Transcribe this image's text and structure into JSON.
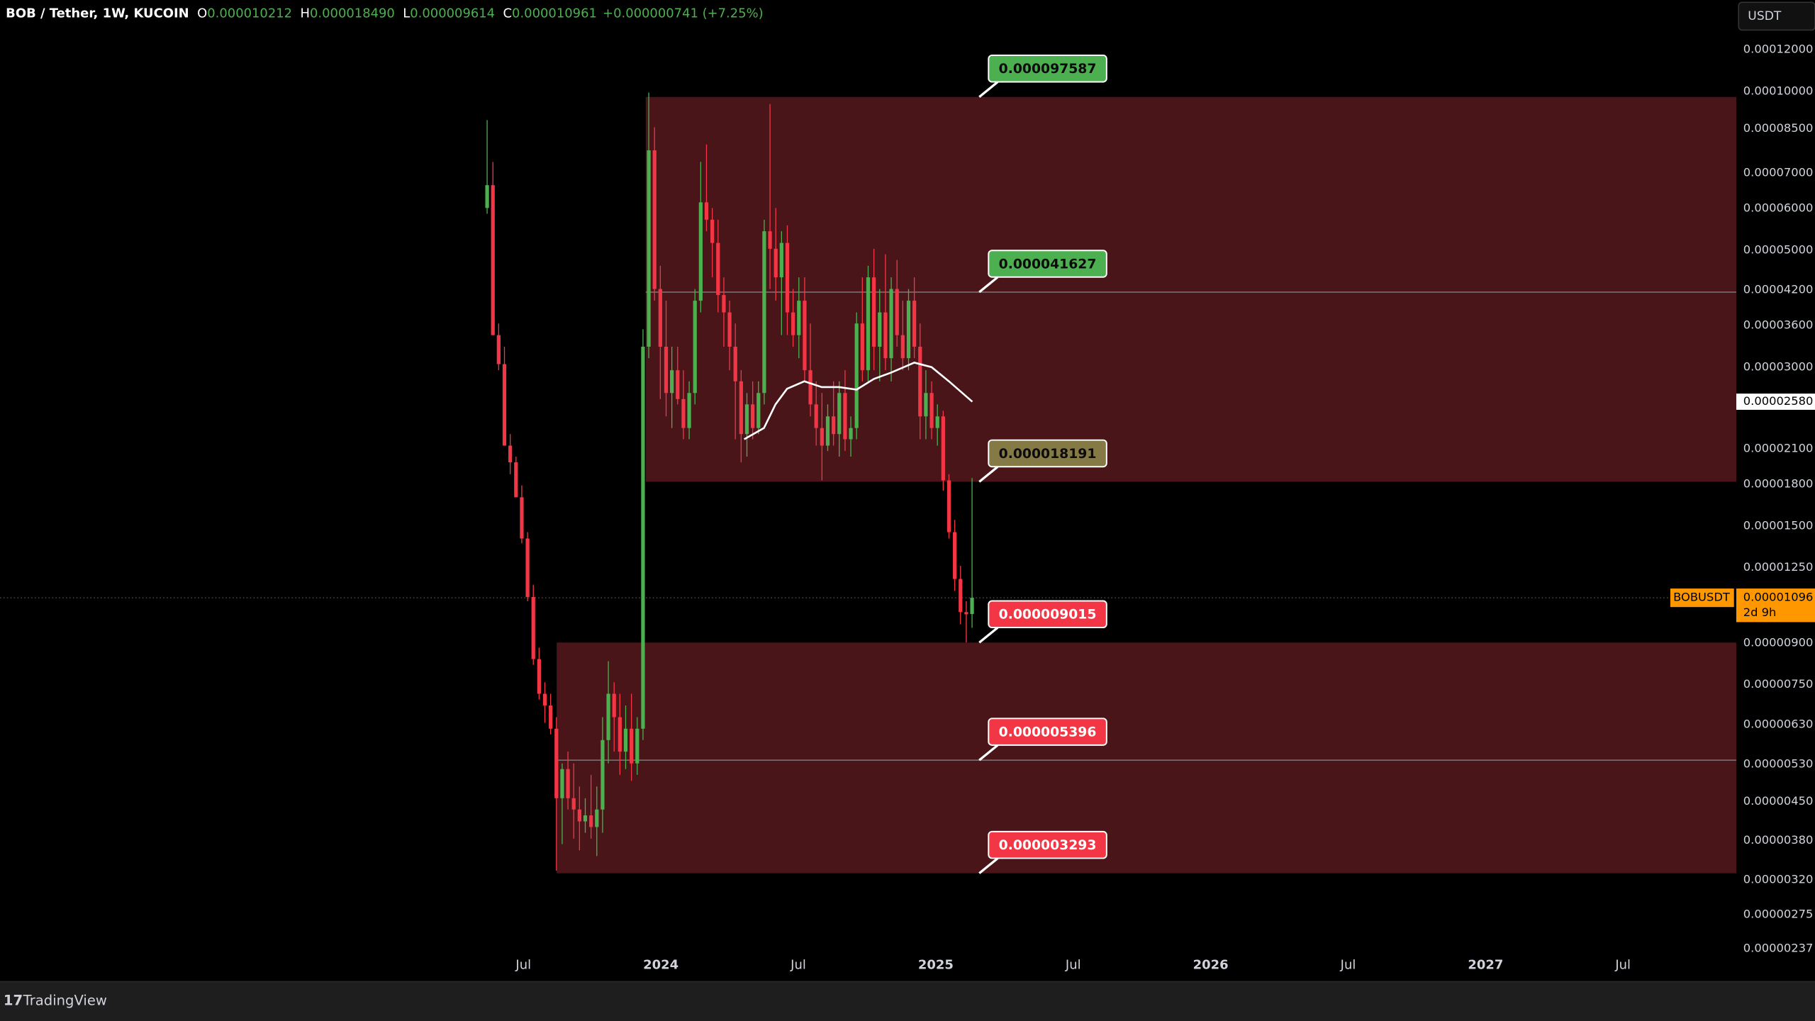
{
  "header": {
    "symbol": "BOB / Tether, 1W, KUCOIN",
    "fields": [
      {
        "key": "O",
        "value": "0.000010212"
      },
      {
        "key": "H",
        "value": "0.000018490"
      },
      {
        "key": "L",
        "value": "0.000009614"
      },
      {
        "key": "C",
        "value": "0.000010961"
      }
    ],
    "change": "+0.000000741 (+7.25%)"
  },
  "currency": "USDT",
  "brand": "TradingView",
  "chart_data": {
    "type": "candlestick",
    "yscale": "log",
    "up_color": "#4caf50",
    "down_color": "#f23645",
    "xlim": [
      2021.596,
      2027.912
    ],
    "ylim": [
      2.34e-06,
      0.000149
    ],
    "xticks": [
      {
        "value": 2023.5,
        "label": "Jul"
      },
      2024,
      {
        "value": 2024.5,
        "label": "Jul"
      },
      2025,
      {
        "value": 2025.5,
        "label": "Jul"
      },
      2026,
      {
        "value": 2026.5,
        "label": "Jul"
      },
      2027,
      {
        "value": 2027.5,
        "label": "Jul"
      }
    ],
    "yticks": [
      {
        "value": 0.00012,
        "label": "0.00012000"
      },
      {
        "value": 0.0001,
        "label": "0.00010000"
      },
      {
        "value": 8.5e-05,
        "label": "0.00008500"
      },
      {
        "value": 7e-05,
        "label": "0.00007000"
      },
      {
        "value": 6e-05,
        "label": "0.00006000"
      },
      {
        "value": 5e-05,
        "label": "0.00005000"
      },
      {
        "value": 4.2e-05,
        "label": "0.00004200"
      },
      {
        "value": 3.6e-05,
        "label": "0.00003600"
      },
      {
        "value": 3e-05,
        "label": "0.00003000"
      },
      {
        "value": 2.1e-05,
        "label": "0.00002100"
      },
      {
        "value": 1.8e-05,
        "label": "0.00001800"
      },
      {
        "value": 1.5e-05,
        "label": "0.00001500"
      },
      {
        "value": 1.25e-05,
        "label": "0.00001250"
      },
      {
        "value": 9e-06,
        "label": "0.00000900"
      },
      {
        "value": 7.5e-06,
        "label": "0.00000750"
      },
      {
        "value": 6.3e-06,
        "label": "0.00000630"
      },
      {
        "value": 5.3e-06,
        "label": "0.00000530"
      },
      {
        "value": 4.5e-06,
        "label": "0.00000450"
      },
      {
        "value": 3.8e-06,
        "label": "0.00000380"
      },
      {
        "value": 3.2e-06,
        "label": "0.00000320"
      },
      {
        "value": 2.75e-06,
        "label": "0.00000275"
      },
      {
        "value": 2.37e-06,
        "label": "0.00000237"
      }
    ],
    "x": [
      2023.368,
      2023.389,
      2023.41,
      2023.431,
      2023.452,
      2023.473,
      2023.494,
      2023.515,
      2023.536,
      2023.557,
      2023.578,
      2023.599,
      2023.62,
      2023.641,
      2023.662,
      2023.683,
      2023.704,
      2023.725,
      2023.746,
      2023.767,
      2023.788,
      2023.809,
      2023.83,
      2023.851,
      2023.872,
      2023.893,
      2023.914,
      2023.935,
      2023.956,
      2023.977,
      2023.998,
      2024.019,
      2024.04,
      2024.061,
      2024.082,
      2024.103,
      2024.124,
      2024.145,
      2024.166,
      2024.187,
      2024.208,
      2024.229,
      2024.25,
      2024.271,
      2024.292,
      2024.313,
      2024.334,
      2024.355,
      2024.376,
      2024.397,
      2024.418,
      2024.439,
      2024.46,
      2024.481,
      2024.502,
      2024.523,
      2024.544,
      2024.565,
      2024.586,
      2024.607,
      2024.628,
      2024.649,
      2024.67,
      2024.691,
      2024.712,
      2024.733,
      2024.754,
      2024.775,
      2024.796,
      2024.817,
      2024.838,
      2024.859,
      2024.88,
      2024.901,
      2024.922,
      2024.943,
      2024.964,
      2024.985,
      2025.006,
      2025.027,
      2025.048,
      2025.069,
      2025.09,
      2025.111,
      2025.132
    ],
    "open": [
      6.01e-05,
      6.64e-05,
      3.45e-05,
      3.04e-05,
      2.13e-05,
      1.98e-05,
      1.7e-05,
      1.42e-05,
      1.1e-05,
      8.39e-06,
      7.21e-06,
      6.85e-06,
      6.19e-06,
      4.57e-06,
      5.19e-06,
      4.57e-06,
      4.35e-06,
      4.13e-06,
      4.24e-06,
      4.03e-06,
      4.35e-06,
      5.89e-06,
      7.21e-06,
      6.51e-06,
      5.6e-06,
      6.19e-06,
      5.32e-06,
      6.19e-06,
      3.28e-05,
      7.73e-05,
      4.22e-05,
      3.28e-05,
      2.68e-05,
      2.96e-05,
      2.61e-05,
      2.3e-05,
      2.68e-05,
      4.01e-05,
      6.16e-05,
      5.71e-05,
      5.16e-05,
      4.11e-05,
      3.81e-05,
      3.28e-05,
      2.82e-05,
      2.24e-05,
      2.55e-05,
      2.3e-05,
      2.68e-05,
      5.43e-05,
      5.03e-05,
      4.44e-05,
      5.16e-05,
      3.81e-05,
      3.45e-05,
      4.01e-05,
      2.96e-05,
      2.55e-05,
      2.3e-05,
      2.13e-05,
      2.42e-05,
      2.24e-05,
      2.68e-05,
      2.19e-05,
      2.3e-05,
      3.63e-05,
      2.96e-05,
      4.44e-05,
      3.28e-05,
      3.81e-05,
      3.12e-05,
      4.22e-05,
      3.45e-05,
      3.12e-05,
      4.01e-05,
      3.28e-05,
      2.42e-05,
      2.68e-05,
      2.3e-05,
      2.42e-05,
      1.83e-05,
      1.46e-05,
      1.19e-05,
      1.03e-05,
      1.0212e-05
    ],
    "high": [
      8.82e-05,
      7.35e-05,
      3.63e-05,
      3.28e-05,
      2.24e-05,
      2.03e-05,
      1.79e-05,
      1.46e-05,
      1.16e-05,
      8.82e-06,
      7.58e-06,
      7.21e-06,
      6.51e-06,
      5.32e-06,
      5.6e-06,
      5.32e-06,
      4.81e-06,
      4.57e-06,
      5.06e-06,
      4.81e-06,
      6.51e-06,
      8.31e-06,
      7.58e-06,
      7.21e-06,
      6.85e-06,
      7.21e-06,
      6.51e-06,
      3.54e-05,
      9.95e-05,
      8.55e-05,
      4.67e-05,
      4.01e-05,
      3.28e-05,
      3.28e-05,
      2.96e-05,
      2.82e-05,
      4.22e-05,
      7.35e-05,
      7.93e-05,
      6.01e-05,
      5.71e-05,
      4.44e-05,
      4.01e-05,
      3.63e-05,
      2.96e-05,
      2.68e-05,
      2.82e-05,
      2.82e-05,
      5.71e-05,
      9.46e-05,
      6.01e-05,
      5.43e-05,
      5.57e-05,
      4.22e-05,
      4.44e-05,
      4.44e-05,
      3.63e-05,
      2.82e-05,
      2.68e-05,
      2.55e-05,
      2.82e-05,
      2.82e-05,
      2.96e-05,
      2.42e-05,
      3.81e-05,
      4.44e-05,
      4.67e-05,
      5.03e-05,
      4.22e-05,
      4.91e-05,
      4.44e-05,
      4.79e-05,
      4.01e-05,
      4.22e-05,
      4.44e-05,
      3.63e-05,
      2.96e-05,
      2.82e-05,
      2.55e-05,
      2.48e-05,
      1.88e-05,
      1.54e-05,
      1.26e-05,
      1.08e-05,
      1.849e-05
    ],
    "low": [
      5.86e-05,
      3.45e-05,
      2.96e-05,
      2.13e-05,
      1.88e-05,
      1.7e-05,
      1.39e-05,
      1.08e-05,
      8.18e-06,
      7.03e-06,
      6.35e-06,
      6.04e-06,
      3.33e-06,
      3.74e-06,
      4.35e-06,
      3.83e-06,
      3.64e-06,
      3.93e-06,
      3.83e-06,
      3.55e-06,
      3.93e-06,
      5.32e-06,
      5.6e-06,
      5.06e-06,
      5.19e-06,
      4.93e-06,
      5.06e-06,
      5.89e-06,
      3.12e-05,
      4.01e-05,
      2.61e-05,
      2.42e-05,
      2.3e-05,
      2.55e-05,
      2.19e-05,
      2.19e-05,
      2.55e-05,
      3.81e-05,
      5.43e-05,
      4.44e-05,
      3.81e-05,
      3.28e-05,
      2.96e-05,
      2.19e-05,
      1.98e-05,
      2.03e-05,
      2.19e-05,
      2.24e-05,
      2.55e-05,
      4.22e-05,
      4.01e-05,
      3.45e-05,
      3.45e-05,
      3.28e-05,
      3.12e-05,
      2.82e-05,
      2.42e-05,
      2.13e-05,
      1.83e-05,
      2.08e-05,
      2.13e-05,
      2.03e-05,
      2.08e-05,
      2.03e-05,
      2.19e-05,
      2.82e-05,
      2.82e-05,
      2.96e-05,
      2.82e-05,
      2.96e-05,
      2.82e-05,
      3.28e-05,
      2.96e-05,
      2.96e-05,
      3.12e-05,
      2.19e-05,
      2.19e-05,
      2.19e-05,
      2.13e-05,
      1.75e-05,
      1.42e-05,
      1.13e-05,
      9.76e-06,
      9.015e-06,
      9.614e-06
    ],
    "close": [
      6.64e-05,
      3.45e-05,
      3.04e-05,
      2.13e-05,
      1.98e-05,
      1.7e-05,
      1.42e-05,
      1.1e-05,
      8.39e-06,
      7.21e-06,
      6.85e-06,
      6.19e-06,
      4.57e-06,
      5.19e-06,
      4.57e-06,
      4.35e-06,
      4.13e-06,
      4.24e-06,
      4.03e-06,
      4.35e-06,
      5.89e-06,
      7.21e-06,
      6.51e-06,
      5.6e-06,
      6.19e-06,
      5.32e-06,
      6.19e-06,
      3.28e-05,
      7.73e-05,
      4.22e-05,
      3.28e-05,
      2.68e-05,
      2.96e-05,
      2.61e-05,
      2.3e-05,
      2.68e-05,
      4.01e-05,
      6.16e-05,
      5.71e-05,
      5.16e-05,
      4.11e-05,
      3.81e-05,
      3.28e-05,
      2.82e-05,
      2.24e-05,
      2.55e-05,
      2.3e-05,
      2.68e-05,
      5.43e-05,
      5.03e-05,
      4.44e-05,
      5.16e-05,
      3.81e-05,
      3.45e-05,
      4.01e-05,
      2.96e-05,
      2.55e-05,
      2.3e-05,
      2.13e-05,
      2.42e-05,
      2.24e-05,
      2.68e-05,
      2.19e-05,
      2.3e-05,
      3.63e-05,
      2.96e-05,
      4.44e-05,
      3.28e-05,
      3.81e-05,
      3.12e-05,
      4.22e-05,
      3.45e-05,
      3.12e-05,
      4.01e-05,
      3.28e-05,
      2.42e-05,
      2.68e-05,
      2.3e-05,
      2.42e-05,
      1.83e-05,
      1.46e-05,
      1.19e-05,
      1.03e-05,
      1.02e-05,
      1.0961e-05
    ],
    "ma": {
      "color": "#ffffff",
      "x": [
        2024.303,
        2024.375,
        2024.417,
        2024.459,
        2024.522,
        2024.585,
        2024.648,
        2024.712,
        2024.775,
        2024.838,
        2024.922,
        2024.985,
        2025.048,
        2025.133
      ],
      "values": [
        2.19e-05,
        2.3e-05,
        2.55e-05,
        2.73e-05,
        2.82e-05,
        2.75e-05,
        2.75e-05,
        2.72e-05,
        2.85e-05,
        2.93e-05,
        3.06e-05,
        3e-05,
        2.82e-05,
        2.58e-05
      ],
      "last_label": "0.00002580"
    },
    "zones": [
      {
        "start": 2023.945,
        "top": 9.7587e-05,
        "bottom": 1.8191e-05,
        "color": "#4a1519"
      },
      {
        "start": 2023.621,
        "top": 9.015e-06,
        "bottom": 3.293e-06,
        "color": "#4a1519"
      }
    ],
    "lines": [
      {
        "start": 2023.945,
        "value": 4.1627e-05
      },
      {
        "start": 2023.621,
        "value": 5.396e-06
      }
    ],
    "levels": [
      {
        "value": 9.7587e-05,
        "color": "#4caf50",
        "text_color": "#0b0b0b"
      },
      {
        "value": 4.1627e-05,
        "color": "#4caf50",
        "text_color": "#0b0b0b"
      },
      {
        "value": 1.8191e-05,
        "color": "#857a45",
        "text_color": "#0b0b0b"
      },
      {
        "value": 9.015e-06,
        "color": "#f23645",
        "text_color": "#ffffff"
      },
      {
        "value": 5.396e-06,
        "color": "#f23645",
        "text_color": "#ffffff"
      },
      {
        "value": 3.293e-06,
        "color": "#f23645",
        "text_color": "#ffffff"
      }
    ],
    "last_price": {
      "value": 1.0961e-05,
      "symbol": "BOBUSDT",
      "label": "0.00001096",
      "countdown": "2d 9h",
      "color": "#ff9800"
    }
  }
}
